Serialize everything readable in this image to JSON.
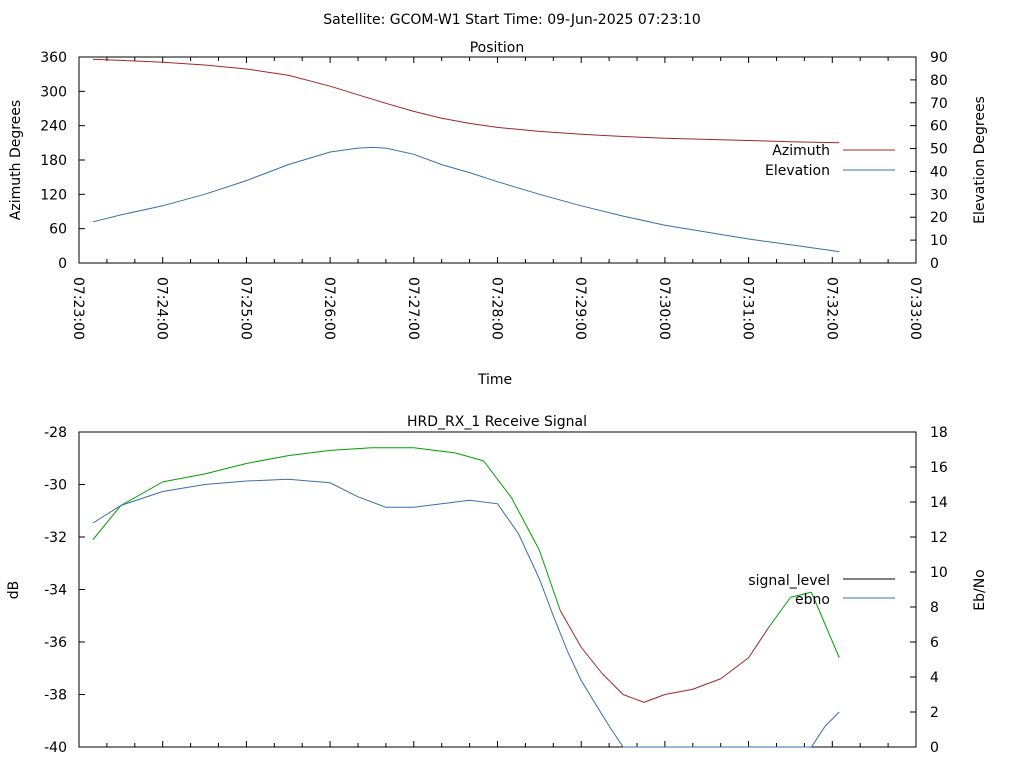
{
  "header": "Satellite: GCOM-W1    Start Time: 09-Jun-2025 07:23:10",
  "chart_data": [
    {
      "type": "line",
      "title": "Position",
      "xlabel": "Time",
      "ylabel": "Azimuth Degrees",
      "y2label": "Elevation Degrees",
      "xlim": [
        "07:23:00",
        "07:33:00"
      ],
      "xticks": [
        "07:23:00",
        "07:24:00",
        "07:25:00",
        "07:26:00",
        "07:27:00",
        "07:28:00",
        "07:29:00",
        "07:30:00",
        "07:31:00",
        "07:32:00",
        "07:33:00"
      ],
      "ylim": [
        0,
        360
      ],
      "yticks": [
        "0",
        "60",
        "120",
        "180",
        "240",
        "300",
        "360"
      ],
      "y2lim": [
        0,
        90
      ],
      "y2ticks": [
        "0",
        "10",
        "20",
        "30",
        "40",
        "50",
        "60",
        "70",
        "80",
        "90"
      ],
      "legend": "right",
      "series": [
        {
          "name": "Azimuth",
          "axis": "y",
          "color": "#a02828",
          "x": [
            "07:23:10",
            "07:23:30",
            "07:24:00",
            "07:24:30",
            "07:25:00",
            "07:25:30",
            "07:26:00",
            "07:26:20",
            "07:26:40",
            "07:27:00",
            "07:27:20",
            "07:27:40",
            "07:28:00",
            "07:28:30",
            "07:29:00",
            "07:29:30",
            "07:30:00",
            "07:30:30",
            "07:31:00",
            "07:31:30",
            "07:32:05"
          ],
          "y": [
            356,
            354,
            351,
            346,
            339,
            328,
            309,
            294,
            279,
            265,
            253,
            244,
            237,
            230,
            225,
            221,
            218,
            216,
            214,
            212,
            210
          ]
        },
        {
          "name": "Elevation",
          "axis": "y2",
          "color": "#3a6fa8",
          "x": [
            "07:23:10",
            "07:23:30",
            "07:24:00",
            "07:24:30",
            "07:25:00",
            "07:25:30",
            "07:26:00",
            "07:26:20",
            "07:26:30",
            "07:26:40",
            "07:27:00",
            "07:27:20",
            "07:27:40",
            "07:28:00",
            "07:28:30",
            "07:29:00",
            "07:29:30",
            "07:30:00",
            "07:30:30",
            "07:31:00",
            "07:31:30",
            "07:32:05"
          ],
          "y": [
            18,
            21,
            25,
            30,
            36,
            43,
            48.5,
            50.2,
            50.5,
            50.2,
            47.5,
            43,
            39.5,
            35.5,
            30,
            25,
            20.5,
            16.5,
            13.5,
            10.5,
            8,
            5
          ]
        }
      ]
    },
    {
      "type": "line",
      "title": "HRD_RX_1 Receive Signal",
      "ylabel": "dB",
      "y2label": "Eb/No",
      "xlim": [
        "07:23:00",
        "07:33:00"
      ],
      "ylim": [
        -40,
        -28
      ],
      "yticks": [
        "-40",
        "-38",
        "-36",
        "-34",
        "-32",
        "-30",
        "-28"
      ],
      "y2lim": [
        0,
        18
      ],
      "y2ticks": [
        "0",
        "2",
        "4",
        "6",
        "8",
        "10",
        "12",
        "14",
        "16",
        "18"
      ],
      "legend": "right",
      "legend_entries": [
        {
          "name": "signal_level",
          "color": "#000000"
        },
        {
          "name": "ebno",
          "color": "#3a6fa8"
        }
      ],
      "signal_colors": {
        "above_threshold": "#00a000",
        "below_threshold": "#a02828"
      },
      "series": [
        {
          "name": "signal_level",
          "axis": "y",
          "x": [
            "07:23:10",
            "07:23:30",
            "07:24:00",
            "07:24:30",
            "07:25:00",
            "07:25:30",
            "07:26:00",
            "07:26:30",
            "07:27:00",
            "07:27:30",
            "07:27:50",
            "07:28:10",
            "07:28:30",
            "07:28:45",
            "07:29:00",
            "07:29:15",
            "07:29:30",
            "07:29:45",
            "07:30:00",
            "07:30:20",
            "07:30:40",
            "07:31:00",
            "07:31:15",
            "07:31:30",
            "07:31:45",
            "07:32:05"
          ],
          "y": [
            -32.1,
            -30.8,
            -29.9,
            -29.6,
            -29.2,
            -28.9,
            -28.7,
            -28.6,
            -28.6,
            -28.8,
            -29.1,
            -30.5,
            -32.5,
            -34.8,
            -36.2,
            -37.2,
            -38.0,
            -38.3,
            -38.0,
            -37.8,
            -37.4,
            -36.6,
            -35.4,
            -34.3,
            -34.1,
            -36.6
          ]
        },
        {
          "name": "ebno",
          "axis": "y2",
          "x": [
            "07:23:10",
            "07:23:30",
            "07:24:00",
            "07:24:30",
            "07:25:00",
            "07:25:30",
            "07:26:00",
            "07:26:20",
            "07:26:40",
            "07:27:00",
            "07:27:20",
            "07:27:40",
            "07:28:00",
            "07:28:15",
            "07:28:30",
            "07:28:40",
            "07:28:50",
            "07:29:00",
            "07:29:10",
            "07:29:20",
            "07:29:30",
            "07:31:45",
            "07:31:55",
            "07:32:05"
          ],
          "y": [
            12.8,
            13.8,
            14.6,
            15.0,
            15.2,
            15.3,
            15.1,
            14.3,
            13.7,
            13.7,
            13.9,
            14.1,
            13.9,
            12.2,
            9.6,
            7.5,
            5.5,
            3.8,
            2.5,
            1.2,
            0,
            0,
            1.2,
            2.0
          ]
        }
      ]
    }
  ]
}
